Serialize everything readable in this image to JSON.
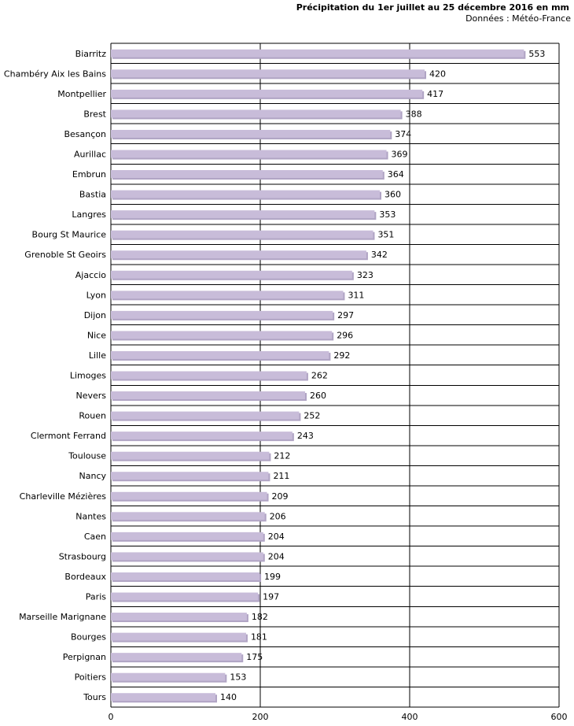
{
  "chart_data": {
    "type": "bar",
    "orientation": "horizontal",
    "title": "Précipitation du 1er juillet au 25 décembre 2016 en mm",
    "subtitle": "Données : Météo-France",
    "xlabel": "",
    "ylabel": "",
    "xlim": [
      0,
      600
    ],
    "x_ticks": [
      0,
      200,
      400,
      600
    ],
    "grid": true,
    "legend": "none",
    "bar_color": "#c8bcd9",
    "bar_shadow_color": "#b0a4c4",
    "grid_color": "#000000",
    "categories": [
      "Biarritz",
      "Chambéry Aix les Bains",
      "Montpellier",
      "Brest",
      "Besançon",
      "Aurillac",
      "Embrun",
      "Bastia",
      "Langres",
      "Bourg St Maurice",
      "Grenoble St Geoirs",
      "Ajaccio",
      "Lyon",
      "Dijon",
      "Nice",
      "Lille",
      "Limoges",
      "Nevers",
      "Rouen",
      "Clermont Ferrand",
      "Toulouse",
      "Nancy",
      "Charleville Mézières",
      "Nantes",
      "Caen",
      "Strasbourg",
      "Bordeaux",
      "Paris",
      "Marseille Marignane",
      "Bourges",
      "Perpignan",
      "Poitiers",
      "Tours"
    ],
    "values": [
      553,
      420,
      417,
      388,
      374,
      369,
      364,
      360,
      353,
      351,
      342,
      323,
      311,
      297,
      296,
      292,
      262,
      260,
      252,
      243,
      212,
      211,
      209,
      206,
      204,
      204,
      199,
      197,
      182,
      181,
      175,
      153,
      140
    ]
  }
}
